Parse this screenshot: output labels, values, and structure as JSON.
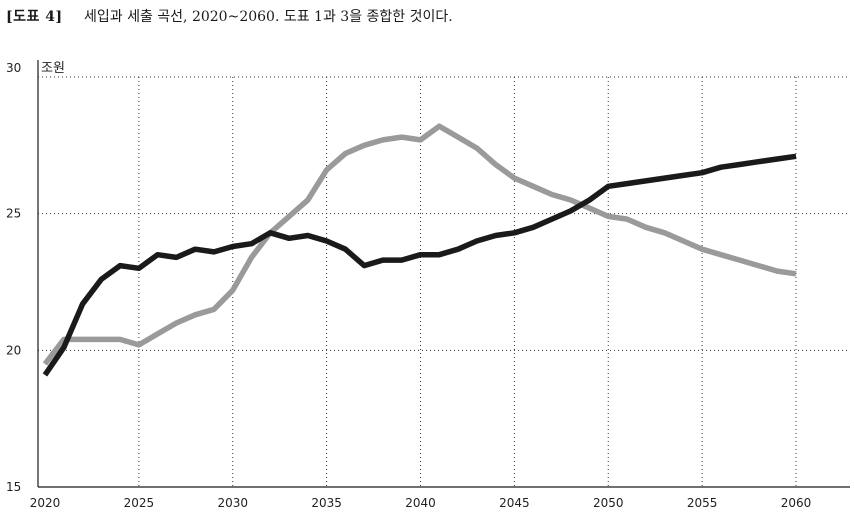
{
  "figure": {
    "label": "[도표 4]",
    "caption": "세입과 세출 곡선, 2020~2060. 도표 1과 3을 종합한 것이다."
  },
  "chart_data": {
    "type": "line",
    "title": "세입과 세출 곡선, 2020~2060. 도표 1과 3을 종합한 것이다.",
    "xlabel": "",
    "ylabel": "조원",
    "xlim": [
      2020,
      2060
    ],
    "ylim": [
      15,
      30
    ],
    "x_ticks": [
      2020,
      2025,
      2030,
      2035,
      2040,
      2045,
      2050,
      2055,
      2060
    ],
    "y_ticks": [
      15,
      20,
      25,
      30
    ],
    "grid": true,
    "legend": "none",
    "x": [
      2020,
      2021,
      2022,
      2023,
      2024,
      2025,
      2026,
      2027,
      2028,
      2029,
      2030,
      2031,
      2032,
      2033,
      2034,
      2035,
      2036,
      2037,
      2038,
      2039,
      2040,
      2041,
      2042,
      2043,
      2044,
      2045,
      2046,
      2047,
      2048,
      2049,
      2050,
      2051,
      2052,
      2053,
      2054,
      2055,
      2056,
      2057,
      2058,
      2059,
      2060
    ],
    "series": [
      {
        "color": "#1a1a1a",
        "values": [
          19.1,
          20.1,
          21.7,
          22.6,
          23.1,
          23.0,
          23.5,
          23.4,
          23.7,
          23.6,
          23.8,
          23.9,
          24.3,
          24.1,
          24.2,
          24.0,
          23.7,
          23.1,
          23.3,
          23.3,
          23.5,
          23.5,
          23.7,
          24.0,
          24.2,
          24.3,
          24.5,
          24.8,
          25.1,
          25.5,
          26.0,
          26.1,
          26.2,
          26.3,
          26.4,
          26.5,
          26.7,
          26.8,
          26.9,
          27.0,
          27.1
        ]
      },
      {
        "color": "#9a9a9a",
        "values": [
          19.5,
          20.4,
          20.4,
          20.4,
          20.4,
          20.2,
          20.6,
          21.0,
          21.3,
          21.5,
          22.2,
          23.4,
          24.3,
          24.9,
          25.5,
          26.6,
          27.2,
          27.5,
          27.7,
          27.8,
          27.7,
          28.2,
          27.8,
          27.4,
          26.8,
          26.3,
          26.0,
          25.7,
          25.5,
          25.2,
          24.9,
          24.8,
          24.5,
          24.3,
          24.0,
          23.7,
          23.5,
          23.3,
          23.1,
          22.9,
          22.8
        ]
      }
    ]
  }
}
